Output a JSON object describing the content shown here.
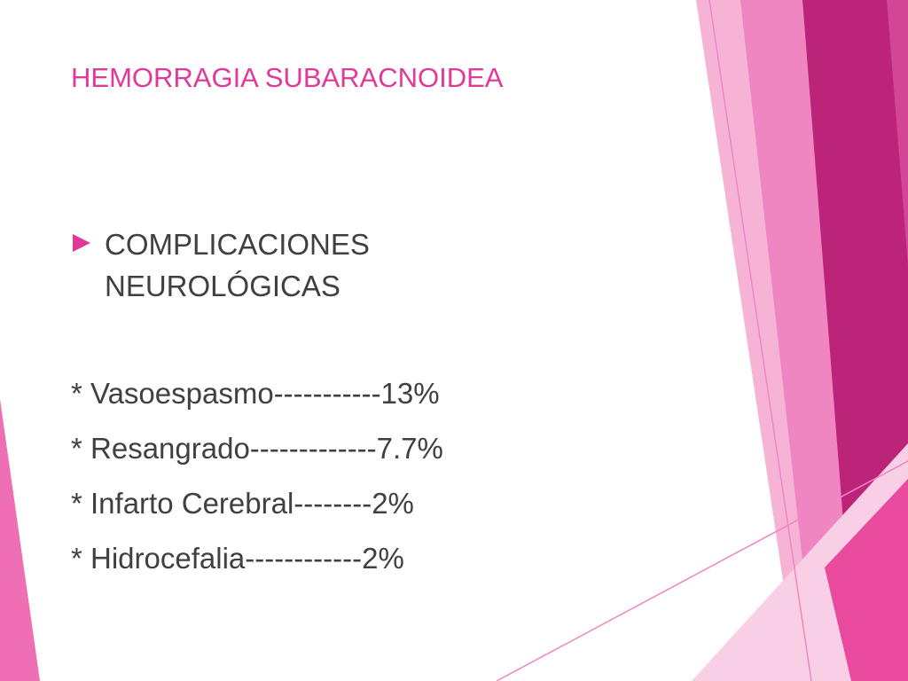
{
  "title": "HEMORRAGIA SUBARACNOIDEA",
  "bullet": {
    "lines": [
      "COMPLICACIONES",
      "NEUROLÓGICAS"
    ]
  },
  "items": [
    "* Vasoespasmo-----------13%",
    "* Resangrado-------------7.7%",
    "* Infarto Cerebral--------2%",
    "* Hidrocefalia------------2%"
  ]
}
